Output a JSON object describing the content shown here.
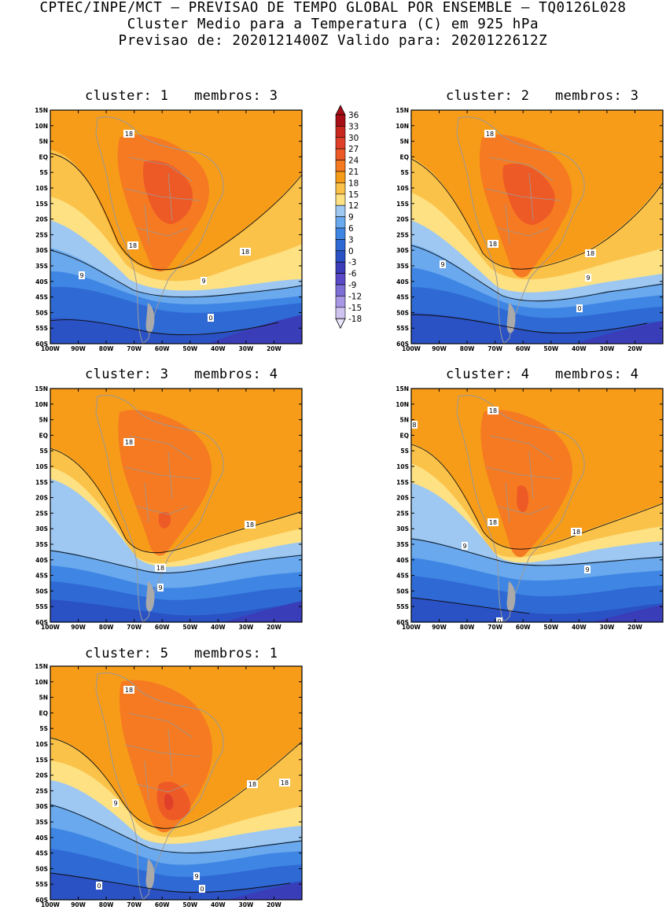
{
  "header": {
    "line1": "CPTEC/INPE/MCT – PREVISAO DE TEMPO GLOBAL POR ENSEMBLE – TQ0126L028",
    "line2": "Cluster Medio para a Temperatura (C) em 925 hPa",
    "line3": "Previsao de: 2020121400Z   Valido para: 2020122612Z"
  },
  "panels": [
    {
      "cluster_label": "cluster:",
      "cluster_num": "1",
      "members_label": "membros:",
      "members_num": "3",
      "contour_labels": [
        "18",
        "18",
        "18",
        "9",
        "9",
        "0"
      ]
    },
    {
      "cluster_label": "cluster:",
      "cluster_num": "2",
      "members_label": "membros:",
      "members_num": "3",
      "contour_labels": [
        "18",
        "18",
        "18",
        "9",
        "9",
        "0"
      ]
    },
    {
      "cluster_label": "cluster:",
      "cluster_num": "3",
      "members_label": "membros:",
      "members_num": "4",
      "contour_labels": [
        "18",
        "18",
        "18",
        "9"
      ]
    },
    {
      "cluster_label": "cluster:",
      "cluster_num": "4",
      "members_label": "membros:",
      "members_num": "4",
      "contour_labels": [
        "18",
        "8",
        "18",
        "18",
        "9",
        "9",
        "0"
      ]
    },
    {
      "cluster_label": "cluster:",
      "cluster_num": "5",
      "members_label": "membros:",
      "members_num": "1",
      "contour_labels": [
        "18",
        "18",
        "18",
        "9",
        "9",
        "0",
        "0"
      ]
    }
  ],
  "axes": {
    "lat_labels": [
      "15N",
      "10N",
      "5N",
      "EQ",
      "5S",
      "10S",
      "15S",
      "20S",
      "25S",
      "30S",
      "35S",
      "40S",
      "45S",
      "50S",
      "55S",
      "60S"
    ],
    "lon_labels": [
      "100W",
      "90W",
      "80W",
      "70W",
      "60W",
      "50W",
      "40W",
      "30W",
      "20W"
    ]
  },
  "colorbar": {
    "labels": [
      "36",
      "33",
      "30",
      "27",
      "24",
      "21",
      "18",
      "15",
      "12",
      "9",
      "6",
      "3",
      "0",
      "-3",
      "-6",
      "-9",
      "-12",
      "-15",
      "-18"
    ],
    "colors": [
      "#a50f15",
      "#c8281e",
      "#e0402a",
      "#ee5a26",
      "#f57a22",
      "#f79c18",
      "#fbc24a",
      "#fde183",
      "#9ec8f2",
      "#6aa9ee",
      "#3f86e4",
      "#2f6ad4",
      "#2b52c4",
      "#3a3db8",
      "#5a4ac8",
      "#7c6ed6",
      "#a897e4",
      "#cfc4f0",
      "#ebe6fb"
    ]
  }
}
